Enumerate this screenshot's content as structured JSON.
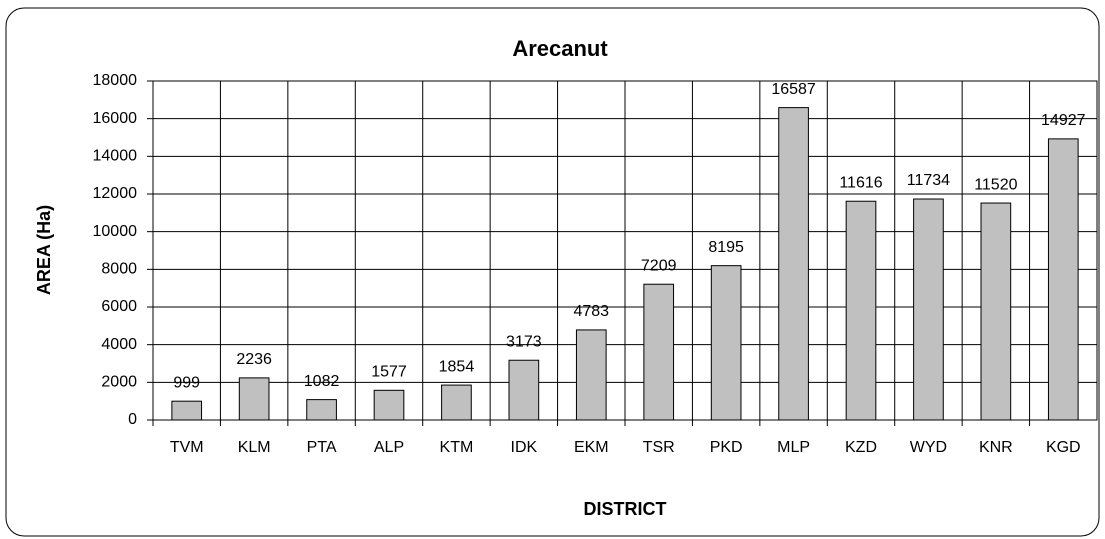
{
  "chart_data": {
    "type": "bar",
    "title": "Arecanut",
    "x_label": "DISTRICT",
    "y_label": "AREA (Ha)",
    "categories": [
      "TVM",
      "KLM",
      "PTA",
      "ALP",
      "KTM",
      "IDK",
      "EKM",
      "TSR",
      "PKD",
      "MLP",
      "KZD",
      "WYD",
      "KNR",
      "KGD"
    ],
    "values": [
      999,
      2236,
      1082,
      1577,
      1854,
      3173,
      4783,
      7209,
      8195,
      16587,
      11616,
      11734,
      11520,
      14927
    ],
    "color": "#c0c0c0",
    "ylim": [
      0,
      18000
    ],
    "yticks": [
      0,
      2000,
      4000,
      6000,
      8000,
      10000,
      12000,
      14000,
      16000,
      18000
    ],
    "grid": true
  }
}
